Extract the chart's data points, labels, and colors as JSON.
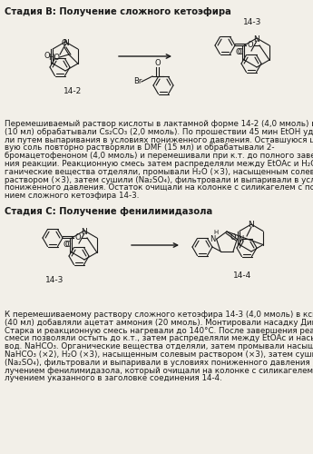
{
  "bg_color": "#f2efe8",
  "title1": "Стадия В: Получение сложного кетоэфира",
  "title2": "Стадия С: Получение фенилимидазола",
  "para1_lines": [
    "Перемешиваемый раствор кислоты в лактамной форме 14-2 (4,0 ммоль) в EtOH",
    "(10 мл) обрабатывали Cs₂CO₃ (2,0 ммоль). По прошествии 45 мин EtOH удаля-",
    "ли путем выпаривания в условиях пониженного давления. Оставшуюся цезие-",
    "вую соль повторно растворяли в DMF (15 мл) и обрабатывали 2-",
    "бромацетофеноном (4,0 ммоль) и перемешивали при к.т. до полного заверше-",
    "ния реакции. Реакционную смесь затем распределяли между EtOAc и H₂O и ор-",
    "ганические вещества отделяли, промывали H₂O (×3), насыщенным солевым",
    "раствором (×3), затем сушили (Na₂SO₄), фильтровали и выпаривали в условиях",
    "пониженного давления. Остаток очищали на колонке с силикагелем с получе-",
    "нием сложного кетоэфира 14-3."
  ],
  "para2_lines": [
    "К перемешиваемому раствору сложного кетоэфира 14-3 (4,0 ммоль) в ксилолах",
    "(40 мл) добавляли ацетат аммония (20 ммоль). Монтировали насадку Дина-",
    "Старка и реакционную смесь нагревали до 140°С. После завершения реакции",
    "смеси позволяли остыть до к.т., затем распределяли между EtOAc и насыщ.",
    "вод. NaHCO₃. Органические вещества отделяли, затем промывали насыщ. вод.",
    "NaHCO₃ (×2), H₂O (×3), насыщенным солевым раствором (×3), затем сушили",
    "(Na₂SO₄), фильтровали и выпаривали в условиях пониженного давления с по-",
    "лучением фенилимидазола, который очищали на колонке с силикагелем с по-",
    "лучением указанного в заголовке соединения 14-4."
  ],
  "text_color": "#1a1a1a",
  "line_color": "#1a1a1a"
}
